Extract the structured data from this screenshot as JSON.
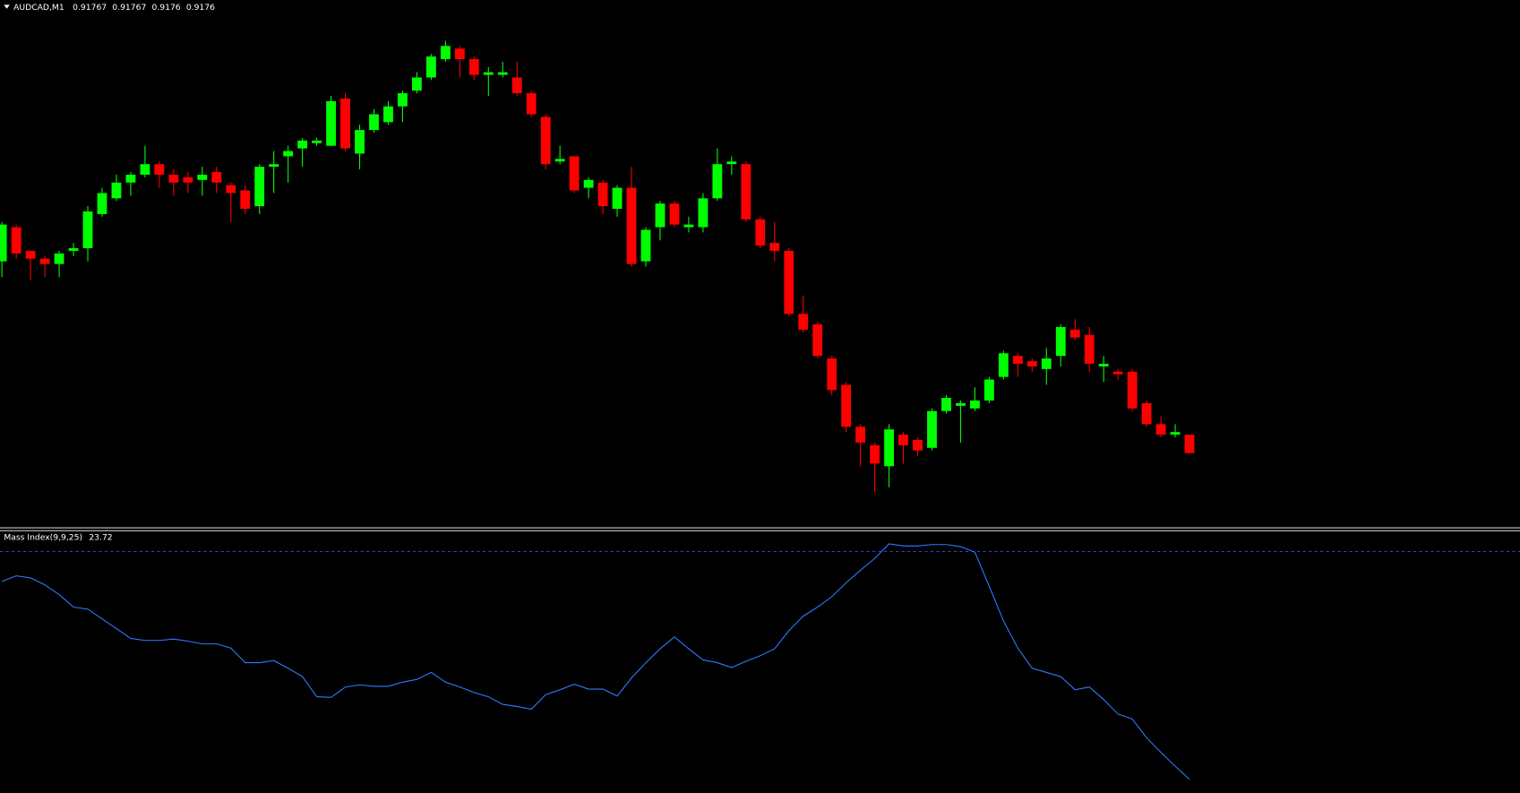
{
  "chart_data": [
    {
      "type": "candlestick",
      "title": "AUDCAD,M1",
      "up_color": "#00ff00",
      "down_color": "#ff0000",
      "open": [
        0.91833,
        0.91846,
        0.91837,
        0.91834,
        0.91832,
        0.91837,
        0.91838,
        0.91851,
        0.91857,
        0.91863,
        0.91866,
        0.9187,
        0.91866,
        0.91865,
        0.91864,
        0.91867,
        0.91862,
        0.9186,
        0.91854,
        0.91869,
        0.91873,
        0.91876,
        0.91878,
        0.91877,
        0.91895,
        0.91874,
        0.91883,
        0.91886,
        0.91892,
        0.91898,
        0.91903,
        0.9191,
        0.91914,
        0.9191,
        0.91904,
        0.91904,
        0.91903,
        0.91897,
        0.91888,
        0.91871,
        0.91873,
        0.91861,
        0.91863,
        0.91853,
        0.91861,
        0.91833,
        0.91846,
        0.91855,
        0.91846,
        0.91846,
        0.91857,
        0.9187,
        0.9187,
        0.91849,
        0.9184,
        0.91837,
        0.91813,
        0.91809,
        0.91796,
        0.91786,
        0.9177,
        0.91763,
        0.91755,
        0.91767,
        0.91765,
        0.91762,
        0.91776,
        0.91778,
        0.91777,
        0.9178,
        0.91789,
        0.91797,
        0.91795,
        0.91792,
        0.91797,
        0.91807,
        0.91805,
        0.91793,
        0.91791,
        0.91791,
        0.91779,
        0.91771,
        0.91767,
        0.91767
      ],
      "high": [
        0.91848,
        0.91847,
        0.91837,
        0.91835,
        0.91837,
        0.9184,
        0.91854,
        0.91861,
        0.91866,
        0.91867,
        0.91877,
        0.91871,
        0.91868,
        0.91867,
        0.91869,
        0.91869,
        0.91863,
        0.91862,
        0.9187,
        0.91875,
        0.91877,
        0.9188,
        0.9188,
        0.91896,
        0.91897,
        0.91885,
        0.91891,
        0.91894,
        0.91898,
        0.91905,
        0.91912,
        0.91917,
        0.91915,
        0.91911,
        0.91907,
        0.91909,
        0.91909,
        0.91898,
        0.91889,
        0.91877,
        0.91873,
        0.91865,
        0.91864,
        0.91862,
        0.91869,
        0.91846,
        0.91856,
        0.91856,
        0.9185,
        0.91859,
        0.91876,
        0.91873,
        0.91871,
        0.9185,
        0.91848,
        0.91838,
        0.9182,
        0.9181,
        0.91797,
        0.91787,
        0.91771,
        0.91764,
        0.91771,
        0.91768,
        0.91766,
        0.91777,
        0.91782,
        0.9178,
        0.91785,
        0.91789,
        0.91799,
        0.91798,
        0.91796,
        0.918,
        0.91809,
        0.91811,
        0.91808,
        0.91797,
        0.91792,
        0.91792,
        0.9178,
        0.91774,
        0.91771,
        0.91767
      ],
      "low": [
        0.91827,
        0.91834,
        0.91826,
        0.91827,
        0.91827,
        0.91835,
        0.91833,
        0.9185,
        0.91856,
        0.91858,
        0.91865,
        0.91861,
        0.91858,
        0.91859,
        0.91858,
        0.91859,
        0.91848,
        0.91851,
        0.91851,
        0.91859,
        0.91863,
        0.91869,
        0.91877,
        0.91877,
        0.91875,
        0.91868,
        0.91882,
        0.91885,
        0.91886,
        0.91897,
        0.91902,
        0.91909,
        0.91903,
        0.91902,
        0.91896,
        0.91903,
        0.91896,
        0.91888,
        0.91868,
        0.9187,
        0.91859,
        0.91857,
        0.91851,
        0.9185,
        0.91831,
        0.91831,
        0.91841,
        0.91846,
        0.91844,
        0.91844,
        0.91856,
        0.91866,
        0.91848,
        0.91838,
        0.91833,
        0.91812,
        0.91806,
        0.91796,
        0.91782,
        0.91768,
        0.91755,
        0.91745,
        0.91747,
        0.91756,
        0.91759,
        0.91761,
        0.91775,
        0.91764,
        0.91776,
        0.91779,
        0.91788,
        0.91789,
        0.91791,
        0.91786,
        0.91793,
        0.91803,
        0.91791,
        0.91787,
        0.91788,
        0.91776,
        0.9177,
        0.91766,
        0.91766,
        0.9176
      ],
      "close": [
        0.91847,
        0.91836,
        0.91834,
        0.91832,
        0.91836,
        0.91838,
        0.91852,
        0.91859,
        0.91863,
        0.91866,
        0.9187,
        0.91866,
        0.91863,
        0.91863,
        0.91866,
        0.91863,
        0.91859,
        0.91853,
        0.91869,
        0.9187,
        0.91875,
        0.91879,
        0.91879,
        0.91894,
        0.91876,
        0.91883,
        0.91889,
        0.91892,
        0.91897,
        0.91903,
        0.91911,
        0.91915,
        0.9191,
        0.91904,
        0.91905,
        0.91905,
        0.91897,
        0.91889,
        0.9187,
        0.91872,
        0.9186,
        0.91864,
        0.91854,
        0.91861,
        0.91832,
        0.91845,
        0.91855,
        0.91847,
        0.91847,
        0.91857,
        0.9187,
        0.91871,
        0.91849,
        0.91839,
        0.91837,
        0.91813,
        0.91807,
        0.91797,
        0.91784,
        0.9177,
        0.91764,
        0.91756,
        0.91769,
        0.91763,
        0.91761,
        0.91776,
        0.91781,
        0.91779,
        0.9178,
        0.91788,
        0.91798,
        0.91794,
        0.91793,
        0.91796,
        0.91808,
        0.91804,
        0.91794,
        0.91794,
        0.9179,
        0.91777,
        0.91771,
        0.91767,
        0.91768,
        0.9176
      ]
    },
    {
      "type": "line",
      "title": "Mass Index(9,9,25)",
      "color": "#2f7bff",
      "level": 27,
      "level_color": "#2546d8",
      "values": [
        26.57,
        26.65,
        26.62,
        26.52,
        26.38,
        26.2,
        26.17,
        26.03,
        25.89,
        25.75,
        25.72,
        25.72,
        25.74,
        25.71,
        25.67,
        25.67,
        25.61,
        25.4,
        25.4,
        25.43,
        25.32,
        25.2,
        24.91,
        24.9,
        25.05,
        25.08,
        25.06,
        25.06,
        25.12,
        25.16,
        25.26,
        25.12,
        25.05,
        24.97,
        24.91,
        24.8,
        24.77,
        24.73,
        24.94,
        25.01,
        25.09,
        25.02,
        25.02,
        24.92,
        25.18,
        25.4,
        25.6,
        25.77,
        25.6,
        25.44,
        25.4,
        25.33,
        25.42,
        25.5,
        25.6,
        25.86,
        26.07,
        26.2,
        26.35,
        26.55,
        26.73,
        26.9,
        27.11,
        27.08,
        27.08,
        27.1,
        27.1,
        27.07,
        26.99,
        26.5,
        26.0,
        25.61,
        25.32,
        25.26,
        25.2,
        25.01,
        25.05,
        24.87,
        24.66,
        24.59,
        24.32,
        24.11,
        23.91,
        23.72
      ]
    }
  ]
}
